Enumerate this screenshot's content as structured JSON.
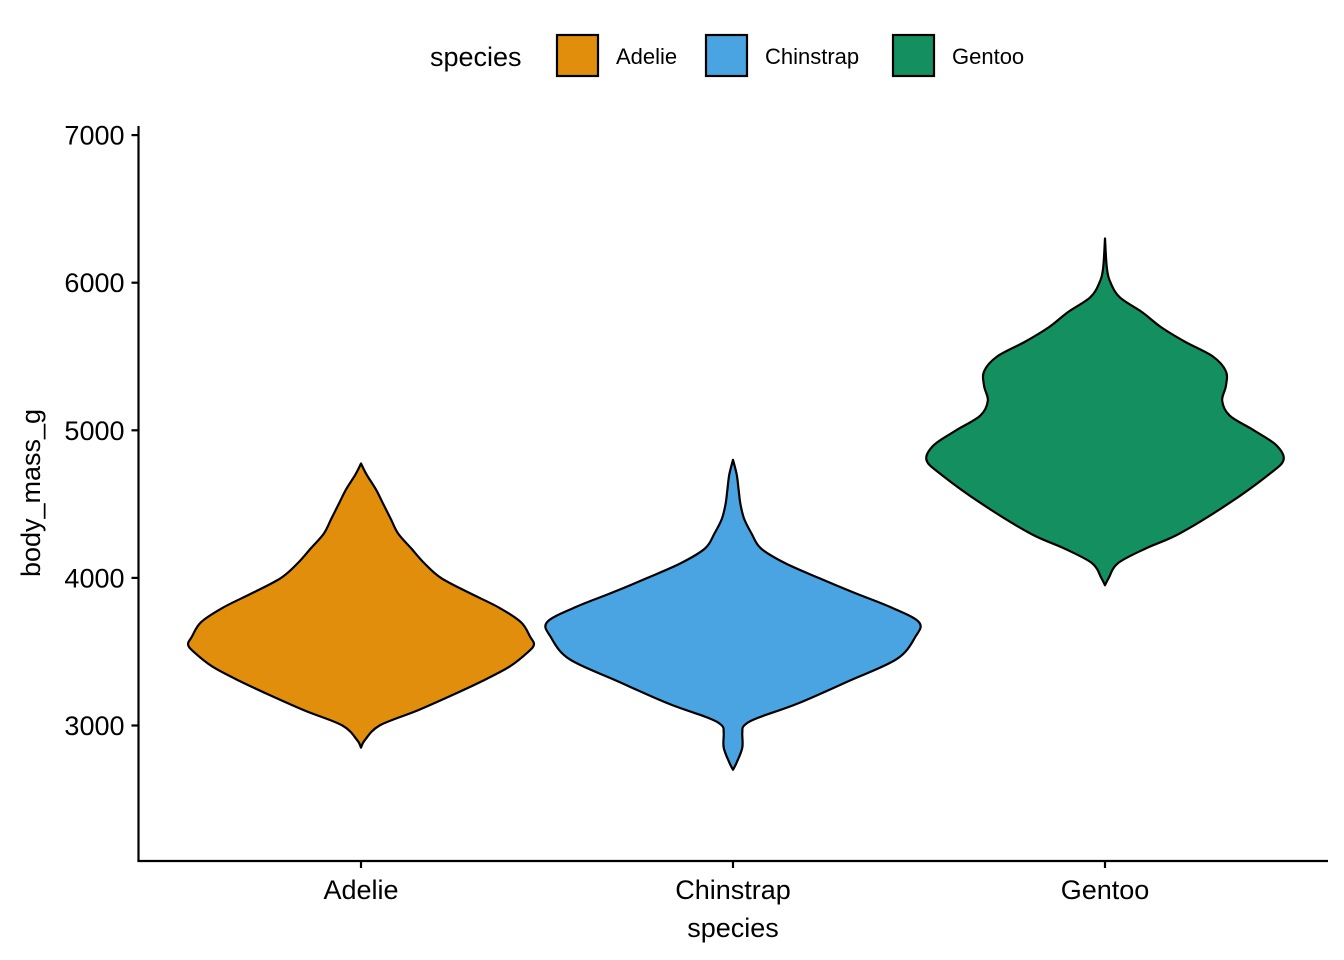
{
  "chart_data": {
    "type": "violin",
    "xlabel": "species",
    "ylabel": "body_mass_g",
    "ylim": [
      2100,
      7050
    ],
    "yticks": [
      3000,
      4000,
      5000,
      6000,
      7000
    ],
    "categories": [
      "Adelie",
      "Chinstrap",
      "Gentoo"
    ],
    "legend": {
      "title": "species",
      "placement": "top",
      "entries": [
        "Adelie",
        "Chinstrap",
        "Gentoo"
      ]
    },
    "series": [
      {
        "name": "Adelie",
        "color": "#E08E0B",
        "min": 2850,
        "max": 4775,
        "density": [
          [
            2850,
            0.0
          ],
          [
            2900,
            0.02
          ],
          [
            3000,
            0.1
          ],
          [
            3100,
            0.3
          ],
          [
            3200,
            0.48
          ],
          [
            3300,
            0.65
          ],
          [
            3400,
            0.8
          ],
          [
            3500,
            0.9
          ],
          [
            3550,
            0.93
          ],
          [
            3600,
            0.91
          ],
          [
            3700,
            0.86
          ],
          [
            3800,
            0.74
          ],
          [
            3900,
            0.58
          ],
          [
            4000,
            0.43
          ],
          [
            4100,
            0.34
          ],
          [
            4200,
            0.27
          ],
          [
            4300,
            0.2
          ],
          [
            4400,
            0.16
          ],
          [
            4500,
            0.12
          ],
          [
            4600,
            0.08
          ],
          [
            4700,
            0.03
          ],
          [
            4775,
            0.0
          ]
        ]
      },
      {
        "name": "Chinstrap",
        "color": "#4AA4E2",
        "min": 2700,
        "max": 4800,
        "density": [
          [
            2700,
            0.0
          ],
          [
            2750,
            0.02
          ],
          [
            2850,
            0.05
          ],
          [
            2950,
            0.05
          ],
          [
            3000,
            0.06
          ],
          [
            3050,
            0.13
          ],
          [
            3150,
            0.35
          ],
          [
            3300,
            0.62
          ],
          [
            3450,
            0.88
          ],
          [
            3600,
            0.98
          ],
          [
            3700,
            1.0
          ],
          [
            3800,
            0.85
          ],
          [
            3900,
            0.65
          ],
          [
            4000,
            0.46
          ],
          [
            4100,
            0.28
          ],
          [
            4200,
            0.15
          ],
          [
            4300,
            0.1
          ],
          [
            4400,
            0.06
          ],
          [
            4500,
            0.04
          ],
          [
            4600,
            0.03
          ],
          [
            4700,
            0.02
          ],
          [
            4800,
            0.0
          ]
        ]
      },
      {
        "name": "Gentoo",
        "color": "#149060",
        "min": 3950,
        "max": 6300,
        "density": [
          [
            3950,
            0.0
          ],
          [
            4000,
            0.02
          ],
          [
            4100,
            0.07
          ],
          [
            4200,
            0.22
          ],
          [
            4300,
            0.4
          ],
          [
            4500,
            0.66
          ],
          [
            4700,
            0.88
          ],
          [
            4800,
            0.96
          ],
          [
            4900,
            0.92
          ],
          [
            5000,
            0.8
          ],
          [
            5100,
            0.67
          ],
          [
            5200,
            0.63
          ],
          [
            5300,
            0.65
          ],
          [
            5400,
            0.65
          ],
          [
            5500,
            0.58
          ],
          [
            5600,
            0.43
          ],
          [
            5700,
            0.3
          ],
          [
            5800,
            0.2
          ],
          [
            5900,
            0.08
          ],
          [
            6000,
            0.03
          ],
          [
            6100,
            0.01
          ],
          [
            6300,
            0.0
          ]
        ]
      }
    ]
  }
}
